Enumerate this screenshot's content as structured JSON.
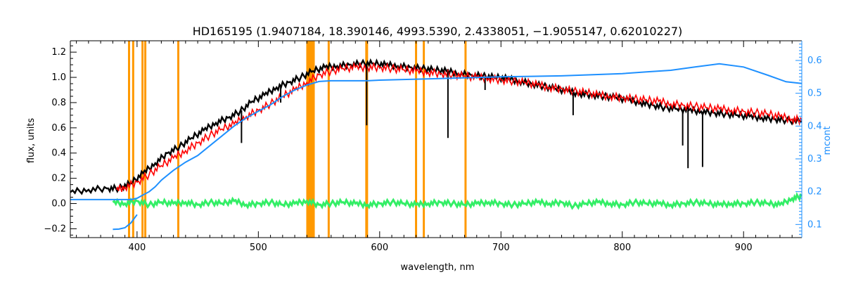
{
  "chart_data": {
    "type": "line",
    "title": "HD165195    (1.9407184, 18.390146, 4993.5390, 2.4338051, −1.9055147, 0.62010227)",
    "xlabel": "wavelength, nm",
    "ylabel": "flux, units",
    "y2label": "mcont",
    "xlim": [
      345,
      948
    ],
    "ylim": [
      -0.27,
      1.29
    ],
    "y2lim": [
      0.06,
      0.66
    ],
    "xticks": [
      400,
      500,
      600,
      700,
      800,
      900
    ],
    "yticks": [
      -0.2,
      0.0,
      0.2,
      0.4,
      0.6,
      0.8,
      1.0,
      1.2
    ],
    "yticklabels": [
      "−0.2",
      "0.0",
      "0.2",
      "0.4",
      "0.6",
      "0.8",
      "1.0",
      "1.2"
    ],
    "y2ticks": [
      0.1,
      0.2,
      0.3,
      0.4,
      0.5,
      0.6
    ],
    "grid": false,
    "colors": {
      "observed": "#000000",
      "model": "#ff0000",
      "mcont": "#1e90ff",
      "residual": "#33ee66",
      "masked_regions": "#ff9900",
      "highlight": "#ffff00",
      "y2axis": "#1e90ff"
    },
    "masked_regions": [
      {
        "x": 393.4
      },
      {
        "x": 396.8
      },
      {
        "x": 404.5
      },
      {
        "x": 406.8
      },
      {
        "x": 434.0
      },
      {
        "x": 558.0
      },
      {
        "x": 589.0
      },
      {
        "x": 589.6
      },
      {
        "x": 630.0
      },
      {
        "x": 636.4
      },
      {
        "x": 670.8
      }
    ],
    "masked_bands": [
      {
        "x0": 539.5,
        "x1": 546.5
      }
    ],
    "series": [
      {
        "key": "observed",
        "axis": "left",
        "x": [
          345,
          360,
          375,
          385,
          395,
          405,
          415,
          425,
          435,
          445,
          455,
          465,
          475,
          485,
          495,
          505,
          515,
          525,
          535,
          545,
          555,
          565,
          575,
          585,
          595,
          605,
          615,
          625,
          635,
          645,
          655,
          665,
          675,
          685,
          695,
          705,
          715,
          725,
          735,
          745,
          755,
          765,
          775,
          785,
          795,
          805,
          815,
          825,
          835,
          845,
          855,
          865,
          875,
          885,
          895,
          905,
          915,
          925,
          935,
          948
        ],
        "y": [
          0.09,
          0.11,
          0.12,
          0.12,
          0.16,
          0.24,
          0.32,
          0.4,
          0.45,
          0.52,
          0.58,
          0.64,
          0.68,
          0.73,
          0.81,
          0.86,
          0.92,
          0.96,
          1.0,
          1.05,
          1.08,
          1.09,
          1.1,
          1.11,
          1.11,
          1.1,
          1.09,
          1.08,
          1.07,
          1.06,
          1.05,
          1.03,
          1.02,
          1.01,
          1.0,
          0.99,
          0.97,
          0.95,
          0.93,
          0.91,
          0.89,
          0.87,
          0.86,
          0.85,
          0.84,
          0.82,
          0.8,
          0.78,
          0.76,
          0.75,
          0.74,
          0.73,
          0.72,
          0.71,
          0.7,
          0.69,
          0.68,
          0.67,
          0.66,
          0.65
        ]
      },
      {
        "key": "model",
        "axis": "left",
        "x": [
          383,
          390,
          400,
          410,
          420,
          430,
          440,
          450,
          460,
          470,
          480,
          490,
          500,
          510,
          520,
          530,
          540,
          550,
          560,
          570,
          580,
          590,
          600,
          610,
          620,
          630,
          640,
          650,
          660,
          670,
          680,
          690,
          700,
          710,
          720,
          730,
          740,
          750,
          760,
          770,
          780,
          790,
          800,
          810,
          820,
          830,
          840,
          850,
          860,
          870,
          880,
          890,
          900,
          910,
          920,
          930,
          940,
          948
        ],
        "y": [
          0.11,
          0.13,
          0.17,
          0.23,
          0.3,
          0.36,
          0.42,
          0.48,
          0.54,
          0.59,
          0.63,
          0.69,
          0.74,
          0.79,
          0.85,
          0.9,
          0.96,
          1.02,
          1.05,
          1.07,
          1.08,
          1.08,
          1.08,
          1.07,
          1.06,
          1.05,
          1.04,
          1.03,
          1.02,
          1.01,
          1.0,
          0.99,
          0.98,
          0.97,
          0.96,
          0.94,
          0.92,
          0.91,
          0.89,
          0.88,
          0.86,
          0.85,
          0.84,
          0.83,
          0.82,
          0.81,
          0.79,
          0.78,
          0.77,
          0.76,
          0.75,
          0.74,
          0.73,
          0.72,
          0.71,
          0.69,
          0.67,
          0.66
        ]
      },
      {
        "key": "mcont",
        "axis": "right",
        "x": [
          345,
          370,
          380,
          385,
          390,
          395,
          400,
          405,
          410,
          415,
          420,
          430,
          440,
          450,
          460,
          470,
          480,
          490,
          500,
          510,
          520,
          530,
          540,
          550,
          560,
          570,
          580,
          590,
          600,
          650,
          700,
          750,
          800,
          820,
          840,
          860,
          880,
          900,
          920,
          935,
          948
        ],
        "y": [
          0.176,
          0.176,
          0.176,
          0.176,
          0.176,
          0.176,
          0.18,
          0.19,
          0.2,
          0.215,
          0.235,
          0.265,
          0.29,
          0.31,
          0.34,
          0.37,
          0.4,
          0.425,
          0.445,
          0.465,
          0.49,
          0.51,
          0.525,
          0.536,
          0.538,
          0.538,
          0.538,
          0.538,
          0.54,
          0.545,
          0.55,
          0.553,
          0.56,
          0.565,
          0.57,
          0.58,
          0.59,
          0.58,
          0.555,
          0.535,
          0.53
        ]
      },
      {
        "key": "mcont_lower",
        "axis": "right",
        "x": [
          380,
          385,
          390,
          395,
          400
        ],
        "y": [
          0.085,
          0.086,
          0.09,
          0.105,
          0.13
        ]
      },
      {
        "key": "residual",
        "axis": "left",
        "x": [
          380,
          390,
          400,
          410,
          420,
          430,
          440,
          450,
          460,
          470,
          480,
          490,
          500,
          510,
          520,
          530,
          540,
          550,
          560,
          570,
          580,
          590,
          600,
          610,
          620,
          630,
          640,
          650,
          660,
          670,
          680,
          690,
          700,
          710,
          720,
          730,
          740,
          750,
          760,
          770,
          780,
          790,
          800,
          810,
          820,
          830,
          840,
          850,
          860,
          870,
          880,
          890,
          900,
          910,
          920,
          930,
          940,
          948
        ],
        "y": [
          0.01,
          0.0,
          0.02,
          -0.01,
          0.01,
          0.0,
          0.01,
          -0.01,
          0.01,
          0.0,
          0.02,
          -0.01,
          0.0,
          0.01,
          -0.01,
          0.0,
          0.02,
          -0.01,
          0.0,
          0.01,
          0.0,
          -0.01,
          0.0,
          0.01,
          0.0,
          -0.01,
          0.0,
          0.01,
          0.0,
          -0.01,
          0.0,
          0.01,
          0.0,
          -0.01,
          0.0,
          0.01,
          0.0,
          0.01,
          -0.02,
          0.0,
          0.01,
          0.0,
          -0.01,
          0.01,
          0.0,
          0.0,
          -0.01,
          0.0,
          0.01,
          0.0,
          -0.01,
          0.0,
          0.0,
          0.01,
          0.0,
          -0.01,
          0.04,
          0.06
        ]
      }
    ],
    "absorption_lines": [
      {
        "series": "observed",
        "x": 486.1,
        "y": 0.48
      },
      {
        "series": "observed",
        "x": 518.4,
        "y": 0.8
      },
      {
        "series": "observed",
        "x": 589.3,
        "y": 0.62
      },
      {
        "series": "observed",
        "x": 656.3,
        "y": 0.52
      },
      {
        "series": "observed",
        "x": 686.9,
        "y": 0.9
      },
      {
        "series": "observed",
        "x": 759.5,
        "y": 0.7
      },
      {
        "series": "observed",
        "x": 849.8,
        "y": 0.46
      },
      {
        "series": "observed",
        "x": 854.2,
        "y": 0.28
      },
      {
        "series": "observed",
        "x": 866.2,
        "y": 0.29
      }
    ]
  }
}
